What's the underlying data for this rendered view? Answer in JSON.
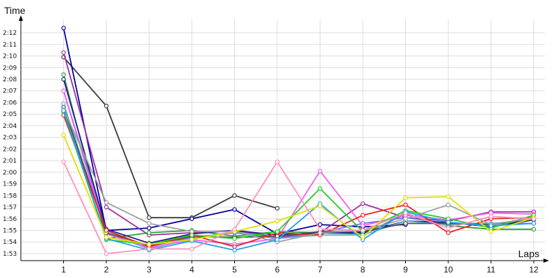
{
  "chart_data": {
    "type": "line",
    "title": "",
    "xlabel": "Laps",
    "ylabel": "Time",
    "x": [
      1,
      2,
      3,
      4,
      5,
      6,
      7,
      8,
      9,
      10,
      11,
      12
    ],
    "x_tick_labels": [
      "1",
      "2",
      "3",
      "4",
      "5",
      "6",
      "7",
      "8",
      "9",
      "10",
      "11",
      "12"
    ],
    "y_unit": "seconds",
    "ylim": [
      112.4,
      133.5
    ],
    "y_ticks": [
      113,
      114,
      115,
      116,
      117,
      118,
      119,
      120,
      121,
      122,
      123,
      124,
      125,
      126,
      127,
      128,
      129,
      130,
      131,
      132
    ],
    "y_tick_labels": [
      "1:53",
      "1:54",
      "1:55",
      "1:56",
      "1:57",
      "1:58",
      "1:59",
      "2:00",
      "2:01",
      "2:02",
      "2:03",
      "2:04",
      "2:05",
      "2:06",
      "2:07",
      "2:08",
      "2:09",
      "2:10",
      "2:11",
      "2:12"
    ],
    "grid": true,
    "legend": "none",
    "series": [
      {
        "color": "#3a3a3a",
        "values": [
          129.9,
          125.7,
          116.1,
          116.1,
          118.0,
          116.9,
          null,
          null,
          null,
          null,
          null,
          null
        ]
      },
      {
        "color": "#00009f",
        "values": [
          132.4,
          115.0,
          115.2,
          116.0,
          116.8,
          114.7,
          115.5,
          115.3,
          115.5,
          null,
          null,
          null
        ]
      },
      {
        "color": "#9f2f9f",
        "values": [
          130.3,
          117.0,
          114.6,
          114.8,
          115.0,
          114.4,
          114.8,
          117.3,
          116.1,
          115.8,
          116.6,
          116.6
        ]
      },
      {
        "color": "#2f9f2f",
        "values": [
          128.4,
          114.3,
          114.8,
          115.0,
          114.5,
          114.9,
          114.8,
          114.7,
          116.4,
          115.4,
          115.1,
          115.1
        ]
      },
      {
        "color": "#6f6fef",
        "values": [
          127.0,
          115.0,
          113.6,
          114.4,
          114.8,
          114.3,
          114.8,
          115.6,
          116.1,
          115.6,
          115.6,
          115.6
        ]
      },
      {
        "color": "#1f1f8f",
        "values": [
          128.0,
          115.1,
          113.9,
          114.7,
          115.0,
          114.6,
          114.8,
          114.8,
          115.8,
          115.7,
          115.3,
          115.9
        ]
      },
      {
        "color": "#5fafcf",
        "values": [
          125.9,
          114.8,
          113.4,
          114.3,
          114.9,
          114.3,
          114.6,
          114.6,
          115.8,
          115.5,
          115.6,
          115.9
        ]
      },
      {
        "color": "#ef5fef",
        "values": [
          127.0,
          114.7,
          113.5,
          114.2,
          113.8,
          114.3,
          120.1,
          115.4,
          116.3,
          115.9,
          116.5,
          116.4
        ]
      },
      {
        "color": "#4f4f4f",
        "values": [
          125.6,
          114.8,
          113.7,
          114.5,
          114.4,
          114.5,
          114.9,
          114.9,
          115.6,
          115.6,
          115.5,
          115.9
        ]
      },
      {
        "color": "#ef1f1f",
        "values": [
          124.9,
          115.0,
          113.6,
          114.6,
          113.6,
          114.8,
          114.6,
          116.3,
          117.2,
          114.8,
          116.0,
          116.1
        ]
      },
      {
        "color": "#1fcf1f",
        "values": [
          125.2,
          114.2,
          113.8,
          114.6,
          114.3,
          114.9,
          118.6,
          114.9,
          116.7,
          116.0,
          115.2,
          116.3
        ]
      },
      {
        "color": "#9f9f9f",
        "values": [
          125.4,
          117.4,
          115.6,
          114.9,
          114.9,
          114.0,
          114.8,
          115.0,
          116.0,
          117.2,
          115.5,
          116.1
        ]
      },
      {
        "color": "#1f9fef",
        "values": [
          125.3,
          114.3,
          113.3,
          114.1,
          113.3,
          114.2,
          117.3,
          114.2,
          116.6,
          115.7,
          115.4,
          115.6
        ]
      },
      {
        "color": "#dfdf00",
        "values": [
          123.2,
          114.4,
          113.8,
          114.2,
          114.9,
          115.8,
          117.1,
          114.4,
          117.8,
          117.9,
          114.9,
          116.1
        ]
      },
      {
        "color": "#ff8fbf",
        "values": [
          120.9,
          113.0,
          113.4,
          113.4,
          115.1,
          120.9,
          115.1,
          115.0,
          116.5,
          115.2,
          116.2,
          116.0
        ]
      }
    ]
  }
}
